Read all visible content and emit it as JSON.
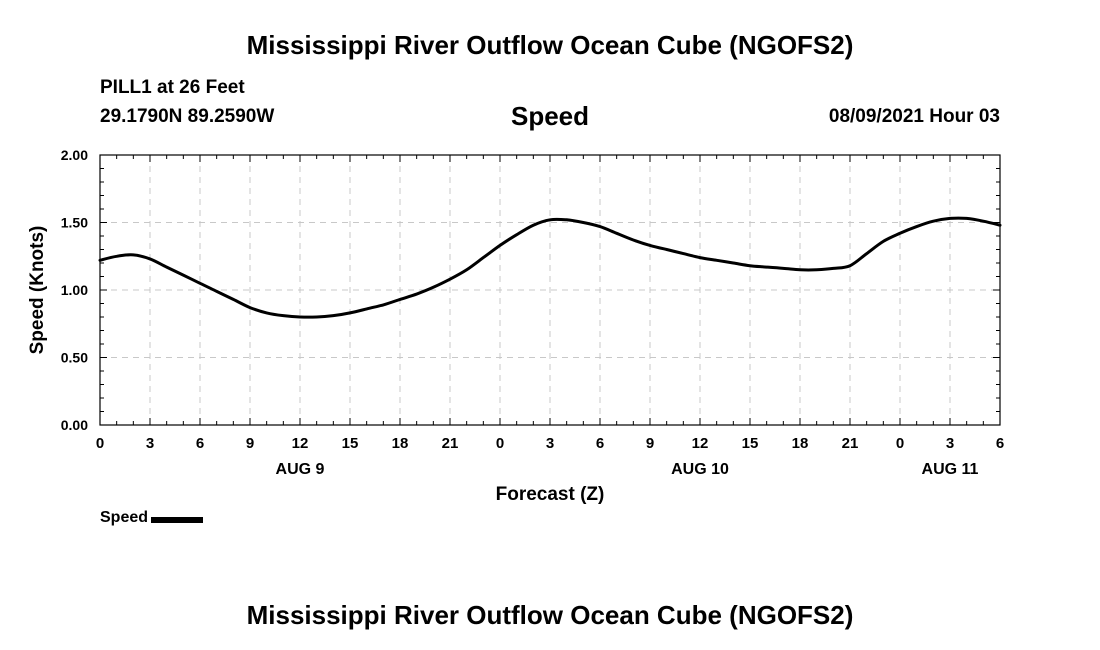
{
  "header": {
    "title": "Mississippi River Outflow Ocean Cube (NGOFS2)",
    "station": "PILL1 at 26 Feet",
    "coords": "29.1790N  89.2590W",
    "parameter": "Speed",
    "datetime": "08/09/2021 Hour 03"
  },
  "footer": {
    "title": "Mississippi River Outflow Ocean Cube (NGOFS2)"
  },
  "legend": {
    "label": "Speed"
  },
  "chart_data": {
    "type": "line",
    "title": "Speed",
    "xlabel": "Forecast (Z)",
    "ylabel": "Speed (Knots)",
    "xlim": [
      0,
      54
    ],
    "ylim": [
      0,
      2.0
    ],
    "grid": true,
    "legend_position": "bottom-left",
    "x_ticks": [
      0,
      3,
      6,
      9,
      12,
      15,
      18,
      21,
      24,
      27,
      30,
      33,
      36,
      39,
      42,
      45,
      48,
      51,
      54
    ],
    "x_tick_labels": [
      "0",
      "3",
      "6",
      "9",
      "12",
      "15",
      "18",
      "21",
      "0",
      "3",
      "6",
      "9",
      "12",
      "15",
      "18",
      "21",
      "0",
      "3",
      "6"
    ],
    "y_ticks": [
      0,
      0.5,
      1.0,
      1.5,
      2.0
    ],
    "y_tick_labels": [
      "0.00",
      "0.50",
      "1.00",
      "1.50",
      "2.00"
    ],
    "day_labels": [
      {
        "label": "AUG 9",
        "x": 12
      },
      {
        "label": "AUG 10",
        "x": 36
      },
      {
        "label": "AUG 11",
        "x": 51
      }
    ],
    "series": [
      {
        "name": "Speed",
        "color": "#000000",
        "x": [
          0,
          1,
          2,
          3,
          4,
          5,
          6,
          7,
          8,
          9,
          10,
          11,
          12,
          13,
          14,
          15,
          16,
          17,
          18,
          19,
          20,
          21,
          22,
          23,
          24,
          25,
          26,
          27,
          28,
          29,
          30,
          31,
          32,
          33,
          34,
          35,
          36,
          37,
          38,
          39,
          40,
          41,
          42,
          43,
          44,
          45,
          46,
          47,
          48,
          49,
          50,
          51,
          52,
          53,
          54
        ],
        "values": [
          1.22,
          1.25,
          1.26,
          1.23,
          1.17,
          1.11,
          1.05,
          0.99,
          0.93,
          0.87,
          0.83,
          0.81,
          0.8,
          0.8,
          0.81,
          0.83,
          0.86,
          0.89,
          0.93,
          0.97,
          1.02,
          1.08,
          1.15,
          1.24,
          1.33,
          1.41,
          1.48,
          1.52,
          1.52,
          1.5,
          1.47,
          1.42,
          1.37,
          1.33,
          1.3,
          1.27,
          1.24,
          1.22,
          1.2,
          1.18,
          1.17,
          1.16,
          1.15,
          1.15,
          1.16,
          1.18,
          1.27,
          1.36,
          1.42,
          1.47,
          1.51,
          1.53,
          1.53,
          1.51,
          1.48
        ]
      }
    ]
  }
}
